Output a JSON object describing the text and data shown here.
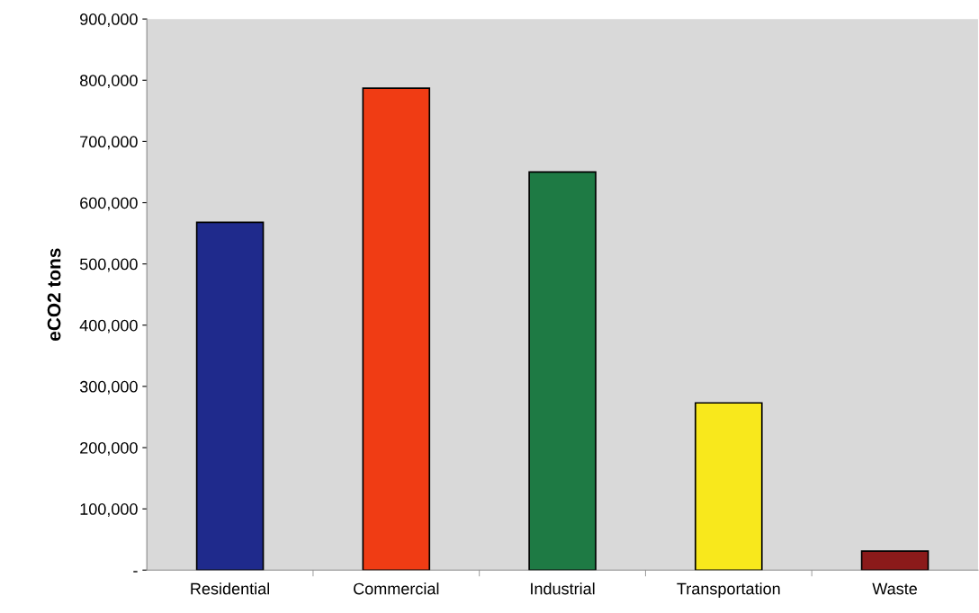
{
  "chart_data": {
    "type": "bar",
    "ylabel": "eCO2 tons",
    "categories": [
      "Residential",
      "Commercial",
      "Industrial",
      "Transportation",
      "Waste"
    ],
    "values": [
      568000,
      787000,
      650000,
      273000,
      31000
    ],
    "colors": [
      "#1f2a8c",
      "#f03c14",
      "#1e7a44",
      "#f8e81c",
      "#8b1a1a"
    ],
    "ylim": [
      0,
      900000
    ],
    "yticks": [
      {
        "value": 0,
        "label": "-"
      },
      {
        "value": 100000,
        "label": "100,000"
      },
      {
        "value": 200000,
        "label": "200,000"
      },
      {
        "value": 300000,
        "label": "300,000"
      },
      {
        "value": 400000,
        "label": "400,000"
      },
      {
        "value": 500000,
        "label": "500,000"
      },
      {
        "value": 600000,
        "label": "600,000"
      },
      {
        "value": 700000,
        "label": "700,000"
      },
      {
        "value": 800000,
        "label": "800,000"
      },
      {
        "value": 900000,
        "label": "900,000"
      }
    ],
    "grid": false,
    "legend": false
  }
}
